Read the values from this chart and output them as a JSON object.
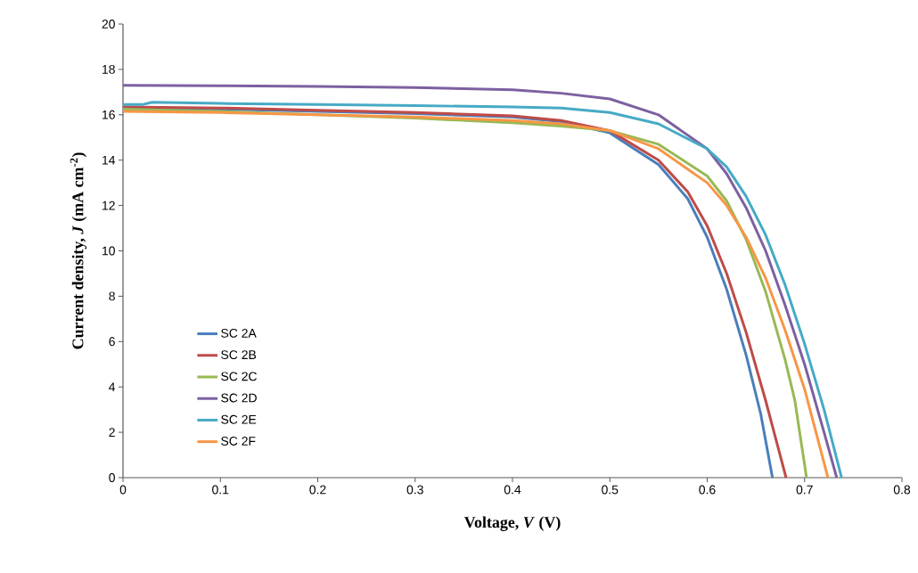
{
  "chart_data": {
    "type": "line",
    "xlabel": "Voltage, *V* (V)",
    "ylabel": "Current density, *J* (mA cm$^{-2}$)",
    "xlim": [
      0,
      0.8
    ],
    "ylim": [
      0,
      20
    ],
    "xticks": [
      0,
      0.1,
      0.2,
      0.3,
      0.4,
      0.5,
      0.6,
      0.7,
      0.8
    ],
    "yticks": [
      0,
      2,
      4,
      6,
      8,
      10,
      12,
      14,
      16,
      18,
      20
    ],
    "grid": false,
    "legend": "left",
    "marker": "none",
    "line_style": "solid",
    "series": [
      {
        "name": "SC 2A",
        "color": "#4a7ebb",
        "x": [
          0,
          0.1,
          0.2,
          0.3,
          0.4,
          0.45,
          0.5,
          0.55,
          0.58,
          0.6,
          0.62,
          0.64,
          0.655,
          0.667
        ],
        "values": [
          16.3,
          16.25,
          16.15,
          16.05,
          15.9,
          15.7,
          15.2,
          13.8,
          12.3,
          10.6,
          8.3,
          5.4,
          2.8,
          0
        ]
      },
      {
        "name": "SC 2B",
        "color": "#be4b48",
        "x": [
          0,
          0.1,
          0.2,
          0.3,
          0.4,
          0.45,
          0.5,
          0.55,
          0.58,
          0.6,
          0.62,
          0.64,
          0.66,
          0.681
        ],
        "values": [
          16.35,
          16.3,
          16.2,
          16.1,
          15.95,
          15.75,
          15.3,
          14.0,
          12.6,
          11.1,
          9.0,
          6.4,
          3.4,
          0
        ]
      },
      {
        "name": "SC 2C",
        "color": "#98b954",
        "x": [
          0,
          0.1,
          0.2,
          0.3,
          0.4,
          0.45,
          0.5,
          0.55,
          0.6,
          0.62,
          0.64,
          0.66,
          0.68,
          0.69,
          0.702
        ],
        "values": [
          16.25,
          16.15,
          16.0,
          15.85,
          15.65,
          15.5,
          15.3,
          14.7,
          13.3,
          12.2,
          10.5,
          8.2,
          5.2,
          3.4,
          0
        ]
      },
      {
        "name": "SC 2D",
        "color": "#7d60a0",
        "x": [
          0,
          0.1,
          0.2,
          0.3,
          0.4,
          0.45,
          0.5,
          0.55,
          0.6,
          0.62,
          0.64,
          0.66,
          0.68,
          0.7,
          0.72,
          0.733
        ],
        "values": [
          17.3,
          17.28,
          17.25,
          17.2,
          17.1,
          16.95,
          16.7,
          16.0,
          14.5,
          13.4,
          11.9,
          10.0,
          7.6,
          5.0,
          2.0,
          0
        ]
      },
      {
        "name": "SC 2E",
        "color": "#46aac5",
        "x": [
          0,
          0.02,
          0.03,
          0.1,
          0.2,
          0.3,
          0.4,
          0.45,
          0.5,
          0.55,
          0.6,
          0.62,
          0.64,
          0.66,
          0.68,
          0.7,
          0.72,
          0.738
        ],
        "values": [
          16.45,
          16.45,
          16.55,
          16.5,
          16.45,
          16.4,
          16.35,
          16.3,
          16.1,
          15.6,
          14.5,
          13.7,
          12.4,
          10.7,
          8.5,
          5.9,
          3.0,
          0
        ]
      },
      {
        "name": "SC 2F",
        "color": "#f79646",
        "x": [
          0,
          0.1,
          0.2,
          0.3,
          0.4,
          0.45,
          0.5,
          0.55,
          0.6,
          0.62,
          0.64,
          0.66,
          0.68,
          0.7,
          0.724
        ],
        "values": [
          16.15,
          16.1,
          16.0,
          15.9,
          15.75,
          15.6,
          15.3,
          14.5,
          13.0,
          12.0,
          10.6,
          8.8,
          6.5,
          3.9,
          0
        ]
      }
    ]
  }
}
